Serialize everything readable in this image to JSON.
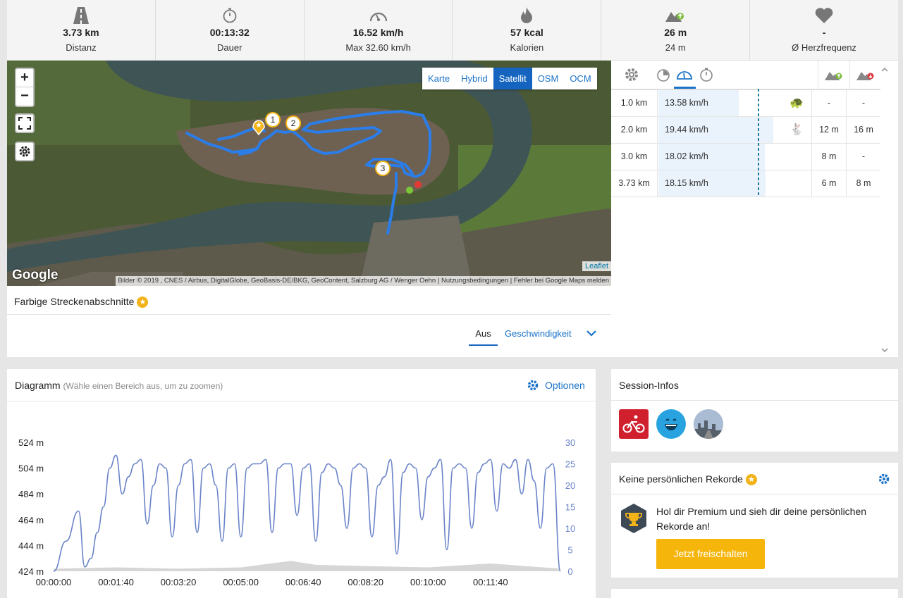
{
  "stats": [
    {
      "icon": "road-icon",
      "value": "3.73 km",
      "label": "Distanz"
    },
    {
      "icon": "stopwatch-icon",
      "value": "00:13:32",
      "label": "Dauer"
    },
    {
      "icon": "speedometer-icon",
      "value": "16.52 km/h",
      "label": "Max 32.60 km/h"
    },
    {
      "icon": "flame-icon",
      "value": "57 kcal",
      "label": "Kalorien"
    },
    {
      "icon": "elevation-up-icon",
      "value": "26 m",
      "label": "24 m"
    },
    {
      "icon": "heart-icon",
      "value": "-",
      "label": "Ø Herzfrequenz"
    }
  ],
  "map": {
    "zoom_in": "+",
    "zoom_out": "−",
    "layers": [
      "Karte",
      "Hybrid",
      "Satellit",
      "OSM",
      "OCM"
    ],
    "active_layer": "Satellit",
    "markers": [
      "1",
      "2",
      "3"
    ],
    "leaflet": "Leaflet",
    "google": "Google",
    "attribution": "Bilder © 2019 , CNES / Airbus, DigitalGlobe, GeoBasis-DE/BKG, GeoContent, Salzburg AG / Wenger Oehn",
    "terms": "Nutzungsbedingungen",
    "report": "Fehler bei Google Maps melden",
    "route_color": "#2b7de9"
  },
  "segments": {
    "title": "Farbige Streckenabschnitte",
    "tabs": [
      "Aus",
      "Geschwindigkeit"
    ],
    "active_tab": "Aus"
  },
  "laps": {
    "rows": [
      {
        "distance": "1.0 km",
        "speed": "13.58 km/h",
        "speed_value": 13.58,
        "badge": "turtle-icon",
        "up": "-",
        "down": "-"
      },
      {
        "distance": "2.0 km",
        "speed": "19.44 km/h",
        "speed_value": 19.44,
        "badge": "rabbit-icon",
        "up": "12 m",
        "down": "16 m"
      },
      {
        "distance": "3.0 km",
        "speed": "18.02 km/h",
        "speed_value": 18.02,
        "badge": "",
        "up": "8 m",
        "down": "-"
      },
      {
        "distance": "3.73 km",
        "speed": "18.15 km/h",
        "speed_value": 18.15,
        "badge": "",
        "up": "6 m",
        "down": "8 m"
      }
    ]
  },
  "chart_header": {
    "title": "Diagramm",
    "hint": "(Wähle einen Bereich aus, um zu zoomen)",
    "options": "Optionen"
  },
  "chart_data": {
    "type": "line",
    "y_left_ticks": [
      "524 m",
      "504 m",
      "484 m",
      "464 m",
      "444 m",
      "424 m"
    ],
    "y_left_range": [
      424,
      524
    ],
    "y_right_ticks": [
      "30",
      "25",
      "20",
      "15",
      "10",
      "5",
      "0"
    ],
    "y_right_range": [
      0,
      30
    ],
    "x_ticks": [
      "00:00:00",
      "00:01:40",
      "00:03:20",
      "00:05:00",
      "00:06:40",
      "00:08:20",
      "00:10:00",
      "00:11:40"
    ],
    "series": [
      {
        "axis": "right",
        "color": "#6b84c9",
        "x": [
          0,
          20,
          40,
          50,
          60,
          70,
          80,
          90,
          100,
          110,
          120,
          130,
          140,
          150,
          160,
          170,
          180,
          190,
          200,
          210,
          220,
          230,
          240,
          250,
          260,
          270,
          280,
          290,
          300,
          310,
          320,
          330,
          340,
          350,
          360,
          370,
          380,
          390,
          400,
          410,
          420,
          430,
          440,
          450,
          460,
          470,
          480,
          490,
          500,
          510,
          520,
          530,
          540,
          550,
          560,
          570,
          580,
          590,
          600,
          610,
          620,
          630,
          640,
          650,
          660,
          670,
          680,
          690,
          700,
          710,
          720,
          730,
          740,
          750,
          760,
          770,
          780,
          790,
          800,
          812
        ],
        "y": [
          0,
          7,
          14,
          1,
          3,
          9,
          15,
          24,
          27,
          18,
          22,
          25,
          26,
          11,
          20,
          25,
          24,
          8,
          20,
          25,
          26,
          9,
          24,
          25,
          20,
          7,
          24,
          25,
          8,
          24,
          25,
          25,
          26,
          9,
          24,
          25,
          25,
          13,
          24,
          25,
          7,
          23,
          25,
          24,
          20,
          10,
          24,
          25,
          24,
          8,
          20,
          22,
          26,
          4,
          23,
          25,
          24,
          12,
          22,
          24,
          26,
          5,
          24,
          25,
          24,
          10,
          23,
          25,
          26,
          14,
          25,
          24,
          26,
          18,
          26,
          21,
          10,
          24,
          25,
          0
        ]
      },
      {
        "axis": "left",
        "color": "#d6d6d6",
        "fill": true,
        "x": [
          0,
          100,
          200,
          300,
          380,
          420,
          500,
          600,
          700,
          812
        ],
        "y": [
          426,
          427,
          426,
          427,
          432,
          429,
          428,
          427,
          430,
          426
        ]
      }
    ]
  },
  "session": {
    "title": "Session-Infos",
    "icons": [
      "cycling-icon",
      "smile-icon",
      "weather-icon"
    ]
  },
  "records": {
    "title": "Keine persönlichen Rekorde",
    "text": "Hol dir Premium und sieh dir deine persönlichen Rekorde an!",
    "button": "Jetzt freischalten"
  }
}
